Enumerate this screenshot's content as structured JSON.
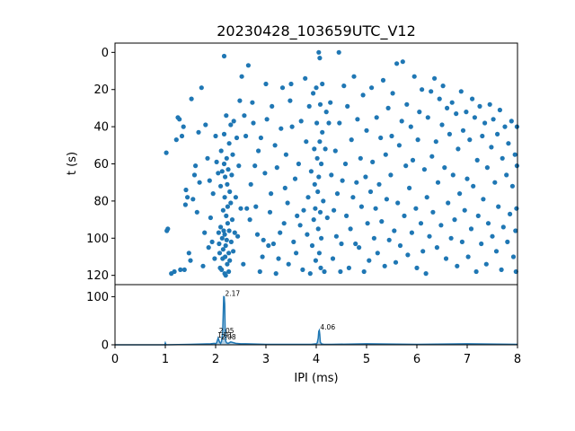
{
  "chart_data": [
    {
      "type": "scatter",
      "title": "20230428_103659UTC_V12",
      "xlabel": "",
      "ylabel": "t (s)",
      "xlim": [
        0,
        8
      ],
      "ylim": [
        125,
        -5
      ],
      "y_inverted": true,
      "yticks": [
        "0",
        "20",
        "40",
        "60",
        "80",
        "100",
        "120"
      ],
      "color": "#1f77b4",
      "points": [
        [
          1.02,
          54
        ],
        [
          1.05,
          95
        ],
        [
          1.03,
          96
        ],
        [
          1.12,
          119
        ],
        [
          1.18,
          118
        ],
        [
          1.22,
          47
        ],
        [
          1.25,
          35
        ],
        [
          1.28,
          36
        ],
        [
          1.3,
          117
        ],
        [
          1.33,
          45
        ],
        [
          1.36,
          40
        ],
        [
          1.38,
          117
        ],
        [
          1.4,
          82
        ],
        [
          1.41,
          74
        ],
        [
          1.44,
          78
        ],
        [
          1.47,
          108
        ],
        [
          1.5,
          112
        ],
        [
          1.52,
          25
        ],
        [
          1.55,
          79
        ],
        [
          1.58,
          66
        ],
        [
          1.6,
          61
        ],
        [
          1.63,
          86
        ],
        [
          1.66,
          43
        ],
        [
          1.68,
          70
        ],
        [
          1.72,
          19
        ],
        [
          1.75,
          115
        ],
        [
          1.78,
          97
        ],
        [
          1.8,
          39
        ],
        [
          1.84,
          57
        ],
        [
          1.86,
          105
        ],
        [
          1.88,
          69
        ],
        [
          1.9,
          89
        ],
        [
          1.93,
          102
        ],
        [
          1.95,
          76
        ],
        [
          1.98,
          111
        ],
        [
          2.0,
          45
        ],
        [
          2.02,
          59
        ],
        [
          2.05,
          65
        ],
        [
          2.06,
          97
        ],
        [
          2.07,
          103
        ],
        [
          2.08,
          108
        ],
        [
          2.09,
          116
        ],
        [
          2.1,
          72
        ],
        [
          2.1,
          94
        ],
        [
          2.11,
          53
        ],
        [
          2.12,
          117
        ],
        [
          2.13,
          100
        ],
        [
          2.13,
          64
        ],
        [
          2.14,
          111
        ],
        [
          2.15,
          85
        ],
        [
          2.15,
          106
        ],
        [
          2.16,
          96
        ],
        [
          2.17,
          2
        ],
        [
          2.17,
          44
        ],
        [
          2.17,
          60
        ],
        [
          2.18,
          78
        ],
        [
          2.18,
          98
        ],
        [
          2.18,
          119
        ],
        [
          2.19,
          67
        ],
        [
          2.19,
          110
        ],
        [
          2.2,
          104
        ],
        [
          2.2,
          120
        ],
        [
          2.21,
          34
        ],
        [
          2.21,
          88
        ],
        [
          2.22,
          57
        ],
        [
          2.22,
          101
        ],
        [
          2.23,
          71
        ],
        [
          2.23,
          114
        ],
        [
          2.24,
          83
        ],
        [
          2.24,
          92
        ],
        [
          2.25,
          63
        ],
        [
          2.26,
          108
        ],
        [
          2.26,
          118
        ],
        [
          2.27,
          49
        ],
        [
          2.27,
          96
        ],
        [
          2.28,
          75
        ],
        [
          2.28,
          112
        ],
        [
          2.3,
          39
        ],
        [
          2.3,
          81
        ],
        [
          2.31,
          102
        ],
        [
          2.32,
          66
        ],
        [
          2.33,
          90
        ],
        [
          2.34,
          55
        ],
        [
          2.35,
          107
        ],
        [
          2.36,
          37
        ],
        [
          2.38,
          97
        ],
        [
          2.4,
          78
        ],
        [
          2.42,
          46
        ],
        [
          2.44,
          99
        ],
        [
          2.46,
          61
        ],
        [
          2.48,
          26
        ],
        [
          2.5,
          84
        ],
        [
          2.52,
          13
        ],
        [
          2.55,
          114
        ],
        [
          2.57,
          34
        ],
        [
          2.6,
          45
        ],
        [
          2.62,
          84
        ],
        [
          2.65,
          7
        ],
        [
          2.68,
          90
        ],
        [
          2.7,
          71
        ],
        [
          2.73,
          27
        ],
        [
          2.75,
          38
        ],
        [
          2.78,
          61
        ],
        [
          2.8,
          83
        ],
        [
          2.83,
          98
        ],
        [
          2.85,
          53
        ],
        [
          2.88,
          118
        ],
        [
          2.9,
          46
        ],
        [
          2.93,
          110
        ],
        [
          2.95,
          101
        ],
        [
          2.98,
          65
        ],
        [
          3.0,
          17
        ],
        [
          3.02,
          36
        ],
        [
          3.05,
          104
        ],
        [
          3.08,
          86
        ],
        [
          3.1,
          76
        ],
        [
          3.12,
          29
        ],
        [
          3.15,
          103
        ],
        [
          3.18,
          50
        ],
        [
          3.2,
          119
        ],
        [
          3.22,
          62
        ],
        [
          3.25,
          111
        ],
        [
          3.28,
          97
        ],
        [
          3.3,
          41
        ],
        [
          3.33,
          19
        ],
        [
          3.36,
          92
        ],
        [
          3.38,
          73
        ],
        [
          3.4,
          55
        ],
        [
          3.43,
          81
        ],
        [
          3.45,
          114
        ],
        [
          3.48,
          26
        ],
        [
          3.5,
          17
        ],
        [
          3.52,
          40
        ],
        [
          3.55,
          102
        ],
        [
          3.58,
          68
        ],
        [
          3.6,
          108
        ],
        [
          3.62,
          88
        ],
        [
          3.65,
          60
        ],
        [
          3.68,
          93
        ],
        [
          3.7,
          37
        ],
        [
          3.73,
          117
        ],
        [
          3.75,
          85
        ],
        [
          3.78,
          14
        ],
        [
          3.8,
          48
        ],
        [
          3.82,
          98
        ],
        [
          3.84,
          78
        ],
        [
          3.86,
          29
        ],
        [
          3.88,
          119
        ],
        [
          3.9,
          64
        ],
        [
          3.92,
          104
        ],
        [
          3.94,
          22
        ],
        [
          3.95,
          90
        ],
        [
          3.96,
          52
        ],
        [
          3.97,
          71
        ],
        [
          3.98,
          84
        ],
        [
          3.99,
          112
        ],
        [
          4.0,
          19
        ],
        [
          4.01,
          38
        ],
        [
          4.02,
          57
        ],
        [
          4.03,
          75
        ],
        [
          4.04,
          95
        ],
        [
          4.05,
          0
        ],
        [
          4.05,
          67
        ],
        [
          4.06,
          108
        ],
        [
          4.07,
          3
        ],
        [
          4.07,
          48
        ],
        [
          4.08,
          28
        ],
        [
          4.08,
          86
        ],
        [
          4.09,
          116
        ],
        [
          4.1,
          60
        ],
        [
          4.1,
          100
        ],
        [
          4.12,
          17
        ],
        [
          4.12,
          43
        ],
        [
          4.14,
          80
        ],
        [
          4.16,
          118
        ],
        [
          4.18,
          52
        ],
        [
          4.2,
          32
        ],
        [
          4.22,
          89
        ],
        [
          4.25,
          38
        ],
        [
          4.28,
          27
        ],
        [
          4.3,
          66
        ],
        [
          4.33,
          111
        ],
        [
          4.35,
          85
        ],
        [
          4.38,
          53
        ],
        [
          4.4,
          99
        ],
        [
          4.42,
          76
        ],
        [
          4.45,
          0
        ],
        [
          4.46,
          38
        ],
        [
          4.48,
          118
        ],
        [
          4.5,
          103
        ],
        [
          4.52,
          69
        ],
        [
          4.55,
          18
        ],
        [
          4.58,
          60
        ],
        [
          4.6,
          88
        ],
        [
          4.62,
          29
        ],
        [
          4.65,
          116
        ],
        [
          4.68,
          95
        ],
        [
          4.7,
          47
        ],
        [
          4.73,
          78
        ],
        [
          4.75,
          13
        ],
        [
          4.78,
          103
        ],
        [
          4.8,
          70
        ],
        [
          4.82,
          36
        ],
        [
          4.85,
          105
        ],
        [
          4.88,
          57
        ],
        [
          4.9,
          83
        ],
        [
          4.93,
          23
        ],
        [
          4.95,
          118
        ],
        [
          4.98,
          67
        ],
        [
          5.0,
          42
        ],
        [
          5.02,
          92
        ],
        [
          5.05,
          112
        ],
        [
          5.08,
          75
        ],
        [
          5.1,
          19
        ],
        [
          5.12,
          59
        ],
        [
          5.15,
          100
        ],
        [
          5.18,
          84
        ],
        [
          5.2,
          35
        ],
        [
          5.22,
          108
        ],
        [
          5.25,
          71
        ],
        [
          5.28,
          46
        ],
        [
          5.3,
          91
        ],
        [
          5.33,
          15
        ],
        [
          5.36,
          115
        ],
        [
          5.38,
          55
        ],
        [
          5.4,
          79
        ],
        [
          5.43,
          30
        ],
        [
          5.45,
          101
        ],
        [
          5.48,
          66
        ],
        [
          5.5,
          45
        ],
        [
          5.52,
          22
        ],
        [
          5.55,
          96
        ],
        [
          5.58,
          113
        ],
        [
          5.6,
          6
        ],
        [
          5.62,
          81
        ],
        [
          5.65,
          50
        ],
        [
          5.67,
          104
        ],
        [
          5.7,
          37
        ],
        [
          5.72,
          5
        ],
        [
          5.75,
          88
        ],
        [
          5.78,
          61
        ],
        [
          5.8,
          28
        ],
        [
          5.82,
          109
        ],
        [
          5.85,
          73
        ],
        [
          5.88,
          40
        ],
        [
          5.9,
          97
        ],
        [
          5.92,
          58
        ],
        [
          5.95,
          13
        ],
        [
          5.98,
          84
        ],
        [
          6.0,
          116
        ],
        [
          6.02,
          47
        ],
        [
          6.05,
          32
        ],
        [
          6.08,
          92
        ],
        [
          6.1,
          20
        ],
        [
          6.12,
          107
        ],
        [
          6.15,
          63
        ],
        [
          6.18,
          119
        ],
        [
          6.2,
          78
        ],
        [
          6.22,
          35
        ],
        [
          6.25,
          99
        ],
        [
          6.28,
          21
        ],
        [
          6.3,
          56
        ],
        [
          6.32,
          86
        ],
        [
          6.35,
          14
        ],
        [
          6.38,
          48
        ],
        [
          6.4,
          105
        ],
        [
          6.42,
          70
        ],
        [
          6.45,
          25
        ],
        [
          6.48,
          93
        ],
        [
          6.5,
          39
        ],
        [
          6.52,
          18
        ],
        [
          6.55,
          62
        ],
        [
          6.58,
          111
        ],
        [
          6.6,
          30
        ],
        [
          6.62,
          81
        ],
        [
          6.65,
          44
        ],
        [
          6.68,
          100
        ],
        [
          6.7,
          27
        ],
        [
          6.72,
          66
        ],
        [
          6.75,
          90
        ],
        [
          6.78,
          33
        ],
        [
          6.8,
          115
        ],
        [
          6.82,
          52
        ],
        [
          6.85,
          76
        ],
        [
          6.88,
          21
        ],
        [
          6.9,
          102
        ],
        [
          6.92,
          42
        ],
        [
          6.95,
          85
        ],
        [
          6.98,
          32
        ],
        [
          7.0,
          68
        ],
        [
          7.02,
          110
        ],
        [
          7.05,
          47
        ],
        [
          7.08,
          95
        ],
        [
          7.1,
          25
        ],
        [
          7.12,
          72
        ],
        [
          7.15,
          35
        ],
        [
          7.18,
          118
        ],
        [
          7.2,
          58
        ],
        [
          7.22,
          88
        ],
        [
          7.25,
          29
        ],
        [
          7.28,
          103
        ],
        [
          7.3,
          45
        ],
        [
          7.32,
          79
        ],
        [
          7.35,
          38
        ],
        [
          7.38,
          114
        ],
        [
          7.4,
          62
        ],
        [
          7.42,
          92
        ],
        [
          7.45,
          28
        ],
        [
          7.48,
          51
        ],
        [
          7.5,
          99
        ],
        [
          7.52,
          36
        ],
        [
          7.55,
          70
        ],
        [
          7.58,
          107
        ],
        [
          7.6,
          44
        ],
        [
          7.62,
          83
        ],
        [
          7.65,
          31
        ],
        [
          7.68,
          117
        ],
        [
          7.7,
          57
        ],
        [
          7.72,
          94
        ],
        [
          7.75,
          40
        ],
        [
          7.78,
          66
        ],
        [
          7.8,
          102
        ],
        [
          7.82,
          49
        ],
        [
          7.85,
          87
        ],
        [
          7.88,
          37
        ],
        [
          7.9,
          72
        ],
        [
          7.92,
          110
        ],
        [
          7.95,
          55
        ],
        [
          7.98,
          84
        ],
        [
          7.99,
          40
        ],
        [
          7.97,
          118
        ],
        [
          7.99,
          61
        ],
        [
          7.96,
          96
        ]
      ]
    },
    {
      "type": "area",
      "title": "",
      "xlabel": "IPI (ms)",
      "ylabel": "",
      "xlim": [
        0,
        8
      ],
      "ylim": [
        0,
        125
      ],
      "xticks": [
        "0",
        "1",
        "2",
        "3",
        "4",
        "5",
        "6",
        "7",
        "8"
      ],
      "yticks": [
        "0",
        "100"
      ],
      "color": "#1f77b4",
      "x": [
        0,
        0.5,
        0.99,
        1.0,
        1.01,
        1.02,
        1.5,
        1.9,
        1.98,
        2.0,
        2.02,
        2.05,
        2.08,
        2.1,
        2.12,
        2.14,
        2.15,
        2.16,
        2.17,
        2.18,
        2.19,
        2.2,
        2.22,
        2.25,
        2.3,
        2.4,
        2.5,
        2.6,
        3.0,
        3.5,
        3.9,
        4.0,
        4.02,
        4.04,
        4.05,
        4.06,
        4.07,
        4.08,
        4.1,
        4.15,
        4.3,
        5.0,
        6.0,
        7.0,
        8.0
      ],
      "values": [
        0,
        0,
        0,
        4,
        1,
        0,
        1,
        2,
        3,
        2,
        4,
        14,
        5,
        3,
        8,
        25,
        60,
        100,
        100,
        85,
        30,
        8,
        4,
        3,
        6,
        3,
        2,
        2,
        1,
        1,
        1,
        2,
        4,
        14,
        28,
        30,
        22,
        6,
        2,
        1,
        1,
        2,
        1,
        2,
        1
      ],
      "annotations": [
        {
          "label": "2.17",
          "x": 2.17,
          "y": 100
        },
        {
          "label": "2.05",
          "x": 2.05,
          "y": 22
        },
        {
          "label": "1.91",
          "x": 2.02,
          "y": 13
        },
        {
          "label": "2.08",
          "x": 2.09,
          "y": 9
        },
        {
          "label": "4.06",
          "x": 4.06,
          "y": 30
        }
      ]
    }
  ]
}
